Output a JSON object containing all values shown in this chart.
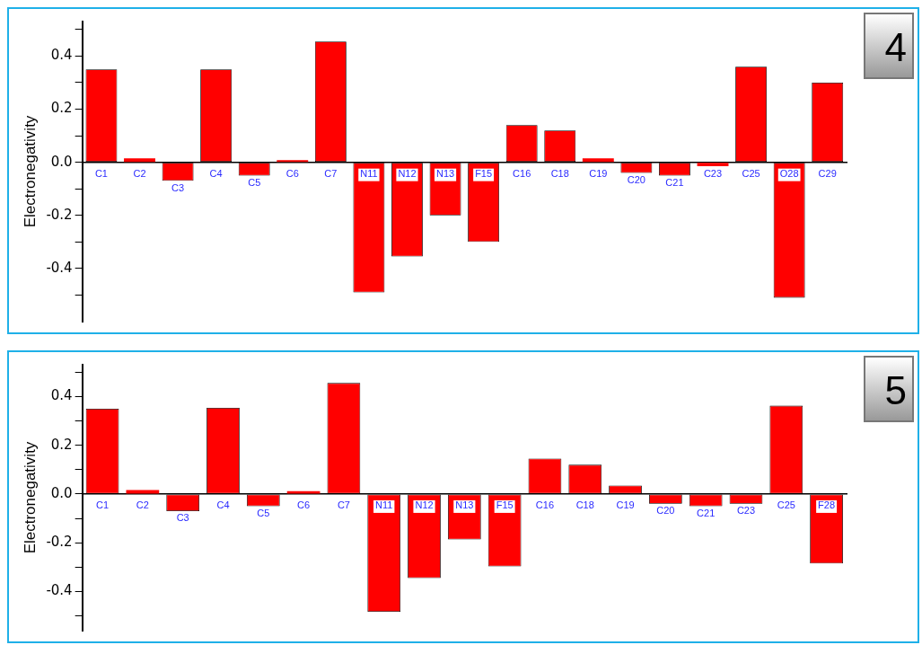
{
  "chart_data": [
    {
      "type": "bar",
      "ylabel": "Electronegativity",
      "annotations": [
        "4"
      ],
      "color": "#ff0000",
      "categories": [
        "C1",
        "C2",
        "C3",
        "C4",
        "C5",
        "C6",
        "C7",
        "N11",
        "N12",
        "N13",
        "F15",
        "C16",
        "C18",
        "C19",
        "C20",
        "C21",
        "C23",
        "C25",
        "O28",
        "C29"
      ],
      "values": [
        0.35,
        0.015,
        -0.07,
        0.35,
        -0.05,
        0.008,
        0.455,
        -0.49,
        -0.355,
        -0.2,
        -0.3,
        0.14,
        0.12,
        0.015,
        -0.04,
        -0.05,
        -0.015,
        0.36,
        -0.51,
        0.3
      ],
      "ylim": [
        -0.6,
        0.53
      ],
      "yticks": [
        {
          "value": -0.5,
          "label": null
        },
        {
          "value": -0.4,
          "label": "-0.4"
        },
        {
          "value": -0.3,
          "label": null
        },
        {
          "value": -0.2,
          "label": "-0.2"
        },
        {
          "value": -0.1,
          "label": null
        },
        {
          "value": 0,
          "label": "0.0"
        },
        {
          "value": 0.1,
          "label": null
        },
        {
          "value": 0.2,
          "label": "0.2"
        },
        {
          "value": 0.3,
          "label": null
        },
        {
          "value": 0.4,
          "label": "0.4"
        },
        {
          "value": 0.5,
          "label": null
        }
      ]
    },
    {
      "type": "bar",
      "ylabel": "Electronegativity",
      "annotations": [
        "5"
      ],
      "color": "#ff0000",
      "categories": [
        "C1",
        "C2",
        "C3",
        "C4",
        "C5",
        "C6",
        "C7",
        "N11",
        "N12",
        "N13",
        "F15",
        "C16",
        "C18",
        "C19",
        "C20",
        "C21",
        "C23",
        "C25",
        "F28"
      ],
      "values": [
        0.35,
        0.016,
        -0.07,
        0.353,
        -0.05,
        0.012,
        0.455,
        -0.483,
        -0.345,
        -0.186,
        -0.297,
        0.145,
        0.12,
        0.035,
        -0.04,
        -0.05,
        -0.04,
        0.362,
        -0.285
      ],
      "ylim": [
        -0.56,
        0.53
      ],
      "yticks": [
        {
          "value": -0.5,
          "label": null
        },
        {
          "value": -0.4,
          "label": "-0.4"
        },
        {
          "value": -0.3,
          "label": null
        },
        {
          "value": -0.2,
          "label": "-0.2"
        },
        {
          "value": -0.1,
          "label": null
        },
        {
          "value": 0,
          "label": "0.0"
        },
        {
          "value": 0.1,
          "label": null
        },
        {
          "value": 0.2,
          "label": "0.2"
        },
        {
          "value": 0.3,
          "label": null
        },
        {
          "value": 0.4,
          "label": "0.4"
        },
        {
          "value": 0.5,
          "label": null
        }
      ]
    }
  ]
}
